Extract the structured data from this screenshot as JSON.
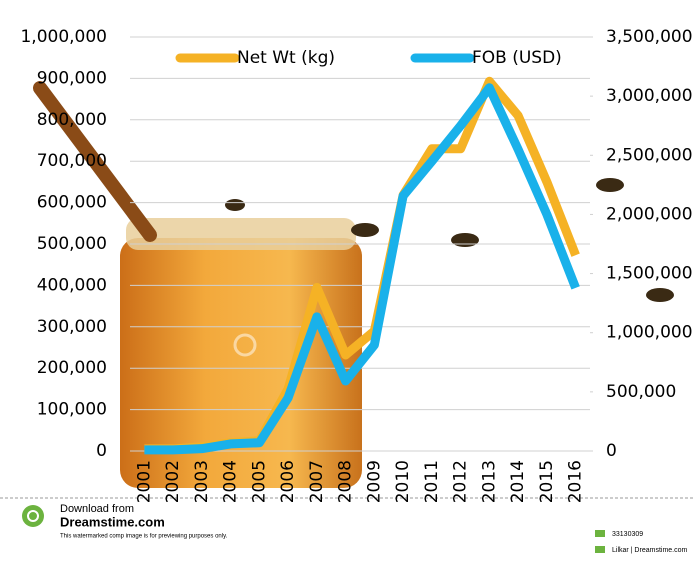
{
  "chart_data": {
    "type": "line",
    "categories": [
      "2001",
      "2002",
      "2003",
      "2004",
      "2005",
      "2006",
      "2007",
      "2008",
      "2009",
      "2010",
      "2011",
      "2012",
      "2013",
      "2014",
      "2015",
      "2016"
    ],
    "series": [
      {
        "name": "Net Wt (kg)",
        "color": "#f5b225",
        "values": [
          5000,
          5000,
          10000,
          20000,
          25000,
          150000,
          395000,
          232000,
          290000,
          618000,
          730000,
          730000,
          893000,
          810000,
          650000,
          473000
        ]
      },
      {
        "name": "FOB (USD)",
        "color": "#19b1ea",
        "axis": "y2",
        "values": [
          10000,
          10000,
          20000,
          60000,
          70000,
          450000,
          1134000,
          592000,
          897000,
          2157000,
          2450000,
          2750000,
          3071000,
          2550000,
          2000000,
          1379000
        ]
      }
    ],
    "ylim": [
      0,
      1000000
    ],
    "yticks": [
      0,
      {
        "value": 100000,
        "label": "100,000"
      },
      {
        "value": 200000,
        "label": "200,000"
      },
      {
        "value": 300000,
        "label": "300,000"
      },
      {
        "value": 400000,
        "label": "400,000"
      },
      {
        "value": 500000,
        "label": "500,000"
      },
      {
        "value": 600000,
        "label": "600,000"
      },
      {
        "value": 700000,
        "label": "700,000"
      },
      {
        "value": 800000,
        "label": "800,000"
      },
      {
        "value": 900000,
        "label": "900,000"
      },
      {
        "value": 1000000,
        "label": "1,000,000"
      }
    ],
    "y2lim": [
      0,
      3500000
    ],
    "y2ticks": [
      0,
      {
        "value": 500000,
        "label": "500,000"
      },
      {
        "value": 1000000,
        "label": "1,000,000"
      },
      {
        "value": 1500000,
        "label": "1,500,000"
      },
      {
        "value": 2000000,
        "label": "2,000,000"
      },
      {
        "value": 2500000,
        "label": "2,500,000"
      },
      {
        "value": 3000000,
        "label": "3,000,000"
      },
      {
        "value": 3500000,
        "label": "3,500,000"
      }
    ],
    "grid": true,
    "legend": "top"
  },
  "footer": {
    "download": "Download from",
    "site": "Dreamstime.com",
    "notice": "This watermarked comp image is for previewing purposes only.",
    "id": "33130309",
    "credit": "Lilkar | Dreamstime.com"
  }
}
